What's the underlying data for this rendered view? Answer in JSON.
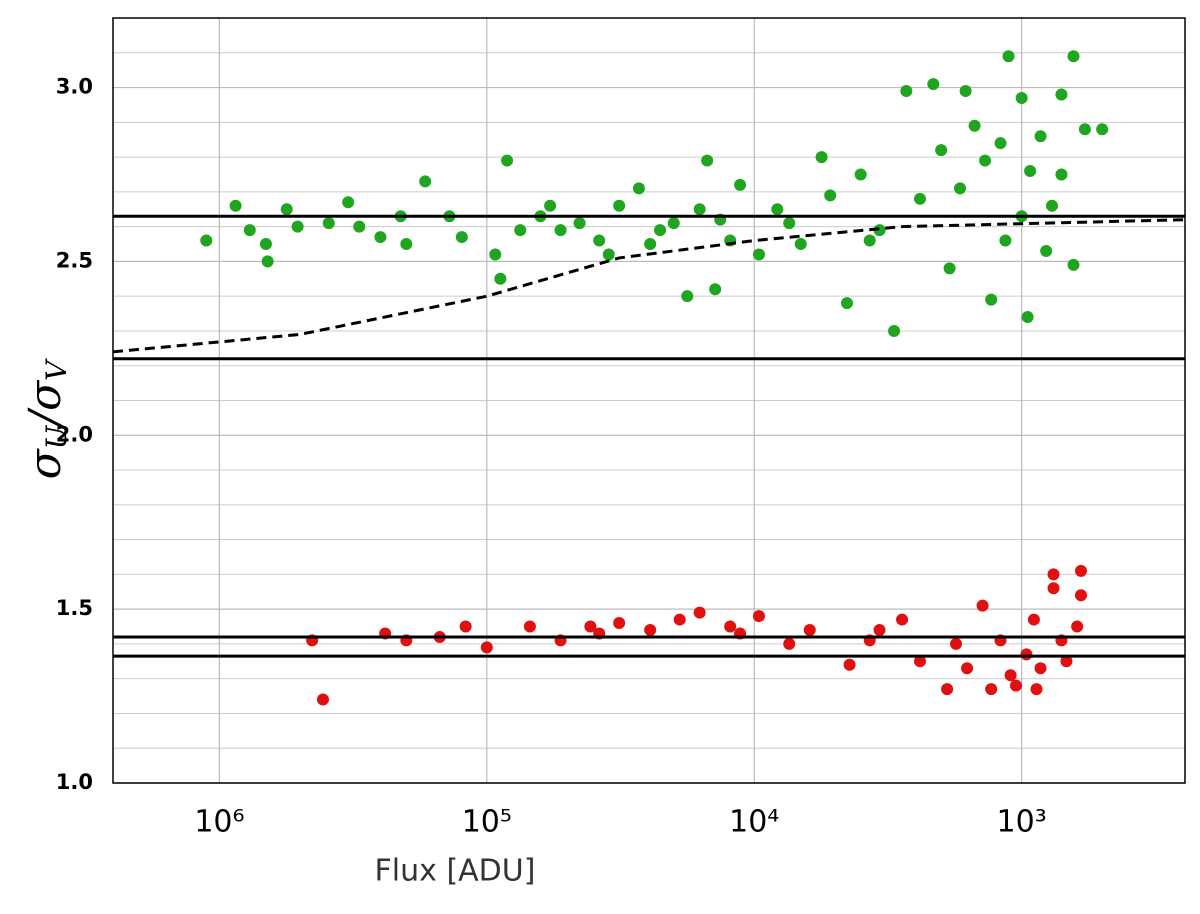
{
  "chart_data": {
    "type": "scatter",
    "xlabel": "Flux [ADU]",
    "ylabel": [
      "σ",
      "U",
      "/σ",
      "V"
    ],
    "xscale": "log",
    "xlim": [
      2500000,
      245
    ],
    "xticks": [
      {
        "value": 1000000,
        "label": "10⁶"
      },
      {
        "value": 100000,
        "label": "10⁵"
      },
      {
        "value": 10000,
        "label": "10⁴"
      },
      {
        "value": 1000,
        "label": "10³"
      }
    ],
    "ylim": [
      1.0,
      3.2
    ],
    "yticks": [
      {
        "value": 1.0,
        "label": "1.0"
      },
      1.5,
      {
        "value": 2.0,
        "label": "2.0"
      },
      2.5,
      {
        "value": 3.0,
        "label": "3.0"
      }
    ],
    "yminor": [
      1.1,
      1.2,
      1.3,
      1.4,
      1.6,
      1.7,
      1.8,
      1.9,
      2.1,
      2.2,
      2.3,
      2.4,
      2.6,
      2.7,
      2.8,
      2.9,
      3.1
    ],
    "grid": true,
    "series": [
      {
        "color": "#1fa51f",
        "x": [
          1120000,
          870000,
          770000,
          660000,
          670000,
          560000,
          510000,
          390000,
          330000,
          250000,
          170000,
          200000,
          124000,
          89000,
          93000,
          84000,
          53000,
          35000,
          24500,
          17800,
          16000,
          15000,
          14000,
          11300,
          9600,
          7400,
          5600,
          4500,
          3700,
          3000,
          2700,
          2400,
          2140,
          1860,
          1620,
          1500,
          1300,
          1150,
          1120,
          1000,
          930,
          810,
          950,
          710,
          640,
          640,
          580,
          500,
          770,
          1000,
          63000,
          45000,
          32000,
          22500,
          13400,
          8200,
          5200,
          4000,
          3400,
          2000,
          1700,
          1370,
          1200,
          850,
          710,
          38000,
          27000,
          20000,
          12300,
          6700,
          138000,
          75000,
          210000,
          300000,
          58000
        ],
        "values": [
          2.56,
          2.66,
          2.59,
          2.5,
          2.55,
          2.65,
          2.6,
          2.61,
          2.67,
          2.57,
          2.73,
          2.55,
          2.57,
          2.45,
          2.52,
          2.79,
          2.59,
          2.52,
          2.55,
          2.4,
          2.65,
          2.79,
          2.42,
          2.72,
          2.52,
          2.61,
          2.8,
          2.38,
          2.56,
          2.3,
          2.99,
          2.68,
          3.01,
          2.48,
          2.99,
          2.89,
          2.39,
          2.56,
          3.09,
          2.97,
          2.76,
          2.53,
          2.34,
          2.98,
          3.09,
          2.49,
          2.88,
          2.88,
          2.66,
          2.63,
          2.63,
          2.61,
          2.66,
          2.59,
          2.62,
          2.65,
          2.69,
          2.75,
          2.59,
          2.82,
          2.71,
          2.79,
          2.84,
          2.86,
          2.75,
          2.56,
          2.71,
          2.61,
          2.56,
          2.55,
          2.63,
          2.59,
          2.63,
          2.6,
          2.66
        ]
      },
      {
        "color": "#e01010",
        "x": [
          450000,
          410000,
          240000,
          200000,
          150000,
          120000,
          100000,
          69000,
          53000,
          41000,
          32000,
          24500,
          19000,
          16000,
          12300,
          9600,
          7400,
          6200,
          4400,
          3400,
          2800,
          2400,
          1900,
          1760,
          1600,
          1400,
          1300,
          1200,
          1100,
          1050,
          960,
          900,
          850,
          760,
          760,
          710,
          680,
          600,
          600,
          620,
          880,
          3700,
          11300,
          38000
        ],
        "values": [
          1.41,
          1.24,
          1.43,
          1.41,
          1.42,
          1.45,
          1.39,
          1.45,
          1.41,
          1.45,
          1.46,
          1.44,
          1.47,
          1.49,
          1.45,
          1.48,
          1.4,
          1.44,
          1.34,
          1.44,
          1.47,
          1.35,
          1.27,
          1.4,
          1.33,
          1.51,
          1.27,
          1.41,
          1.31,
          1.28,
          1.37,
          1.47,
          1.33,
          1.6,
          1.56,
          1.41,
          1.35,
          1.61,
          1.54,
          1.45,
          1.27,
          1.41,
          1.43,
          1.43
        ]
      }
    ],
    "hlines": [
      2.63,
      2.22,
      1.42,
      1.365
    ],
    "curve": {
      "x": [
        2500000,
        500000,
        100000,
        32000,
        10000,
        2800,
        245
      ],
      "values": [
        2.24,
        2.29,
        2.4,
        2.51,
        2.56,
        2.6,
        2.62
      ],
      "dashed": true
    }
  }
}
